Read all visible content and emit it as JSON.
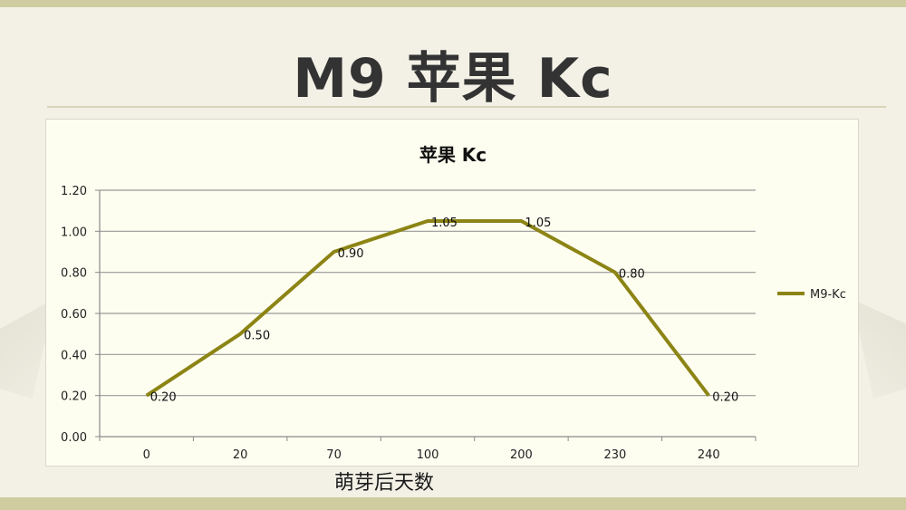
{
  "slide": {
    "title": "M9 苹果 Kc"
  },
  "chart_data": {
    "type": "line",
    "title": "苹果 Kc",
    "xlabel": "萌芽后天数",
    "ylabel": "",
    "categories": [
      "0",
      "20",
      "70",
      "100",
      "200",
      "230",
      "240"
    ],
    "series": [
      {
        "name": "M9-Kc",
        "values": [
          0.2,
          0.5,
          0.9,
          1.05,
          1.05,
          0.8,
          0.2
        ],
        "color": "#8c8414"
      }
    ],
    "yticks": [
      "0.00",
      "0.20",
      "0.40",
      "0.60",
      "0.80",
      "1.00",
      "1.20"
    ],
    "ylim": [
      0,
      1.2
    ],
    "data_labels": [
      "0.20",
      "0.50",
      "0.90",
      "1.05",
      "1.05",
      "0.80",
      "0.20"
    ],
    "grid": true,
    "legend_position": "right"
  }
}
